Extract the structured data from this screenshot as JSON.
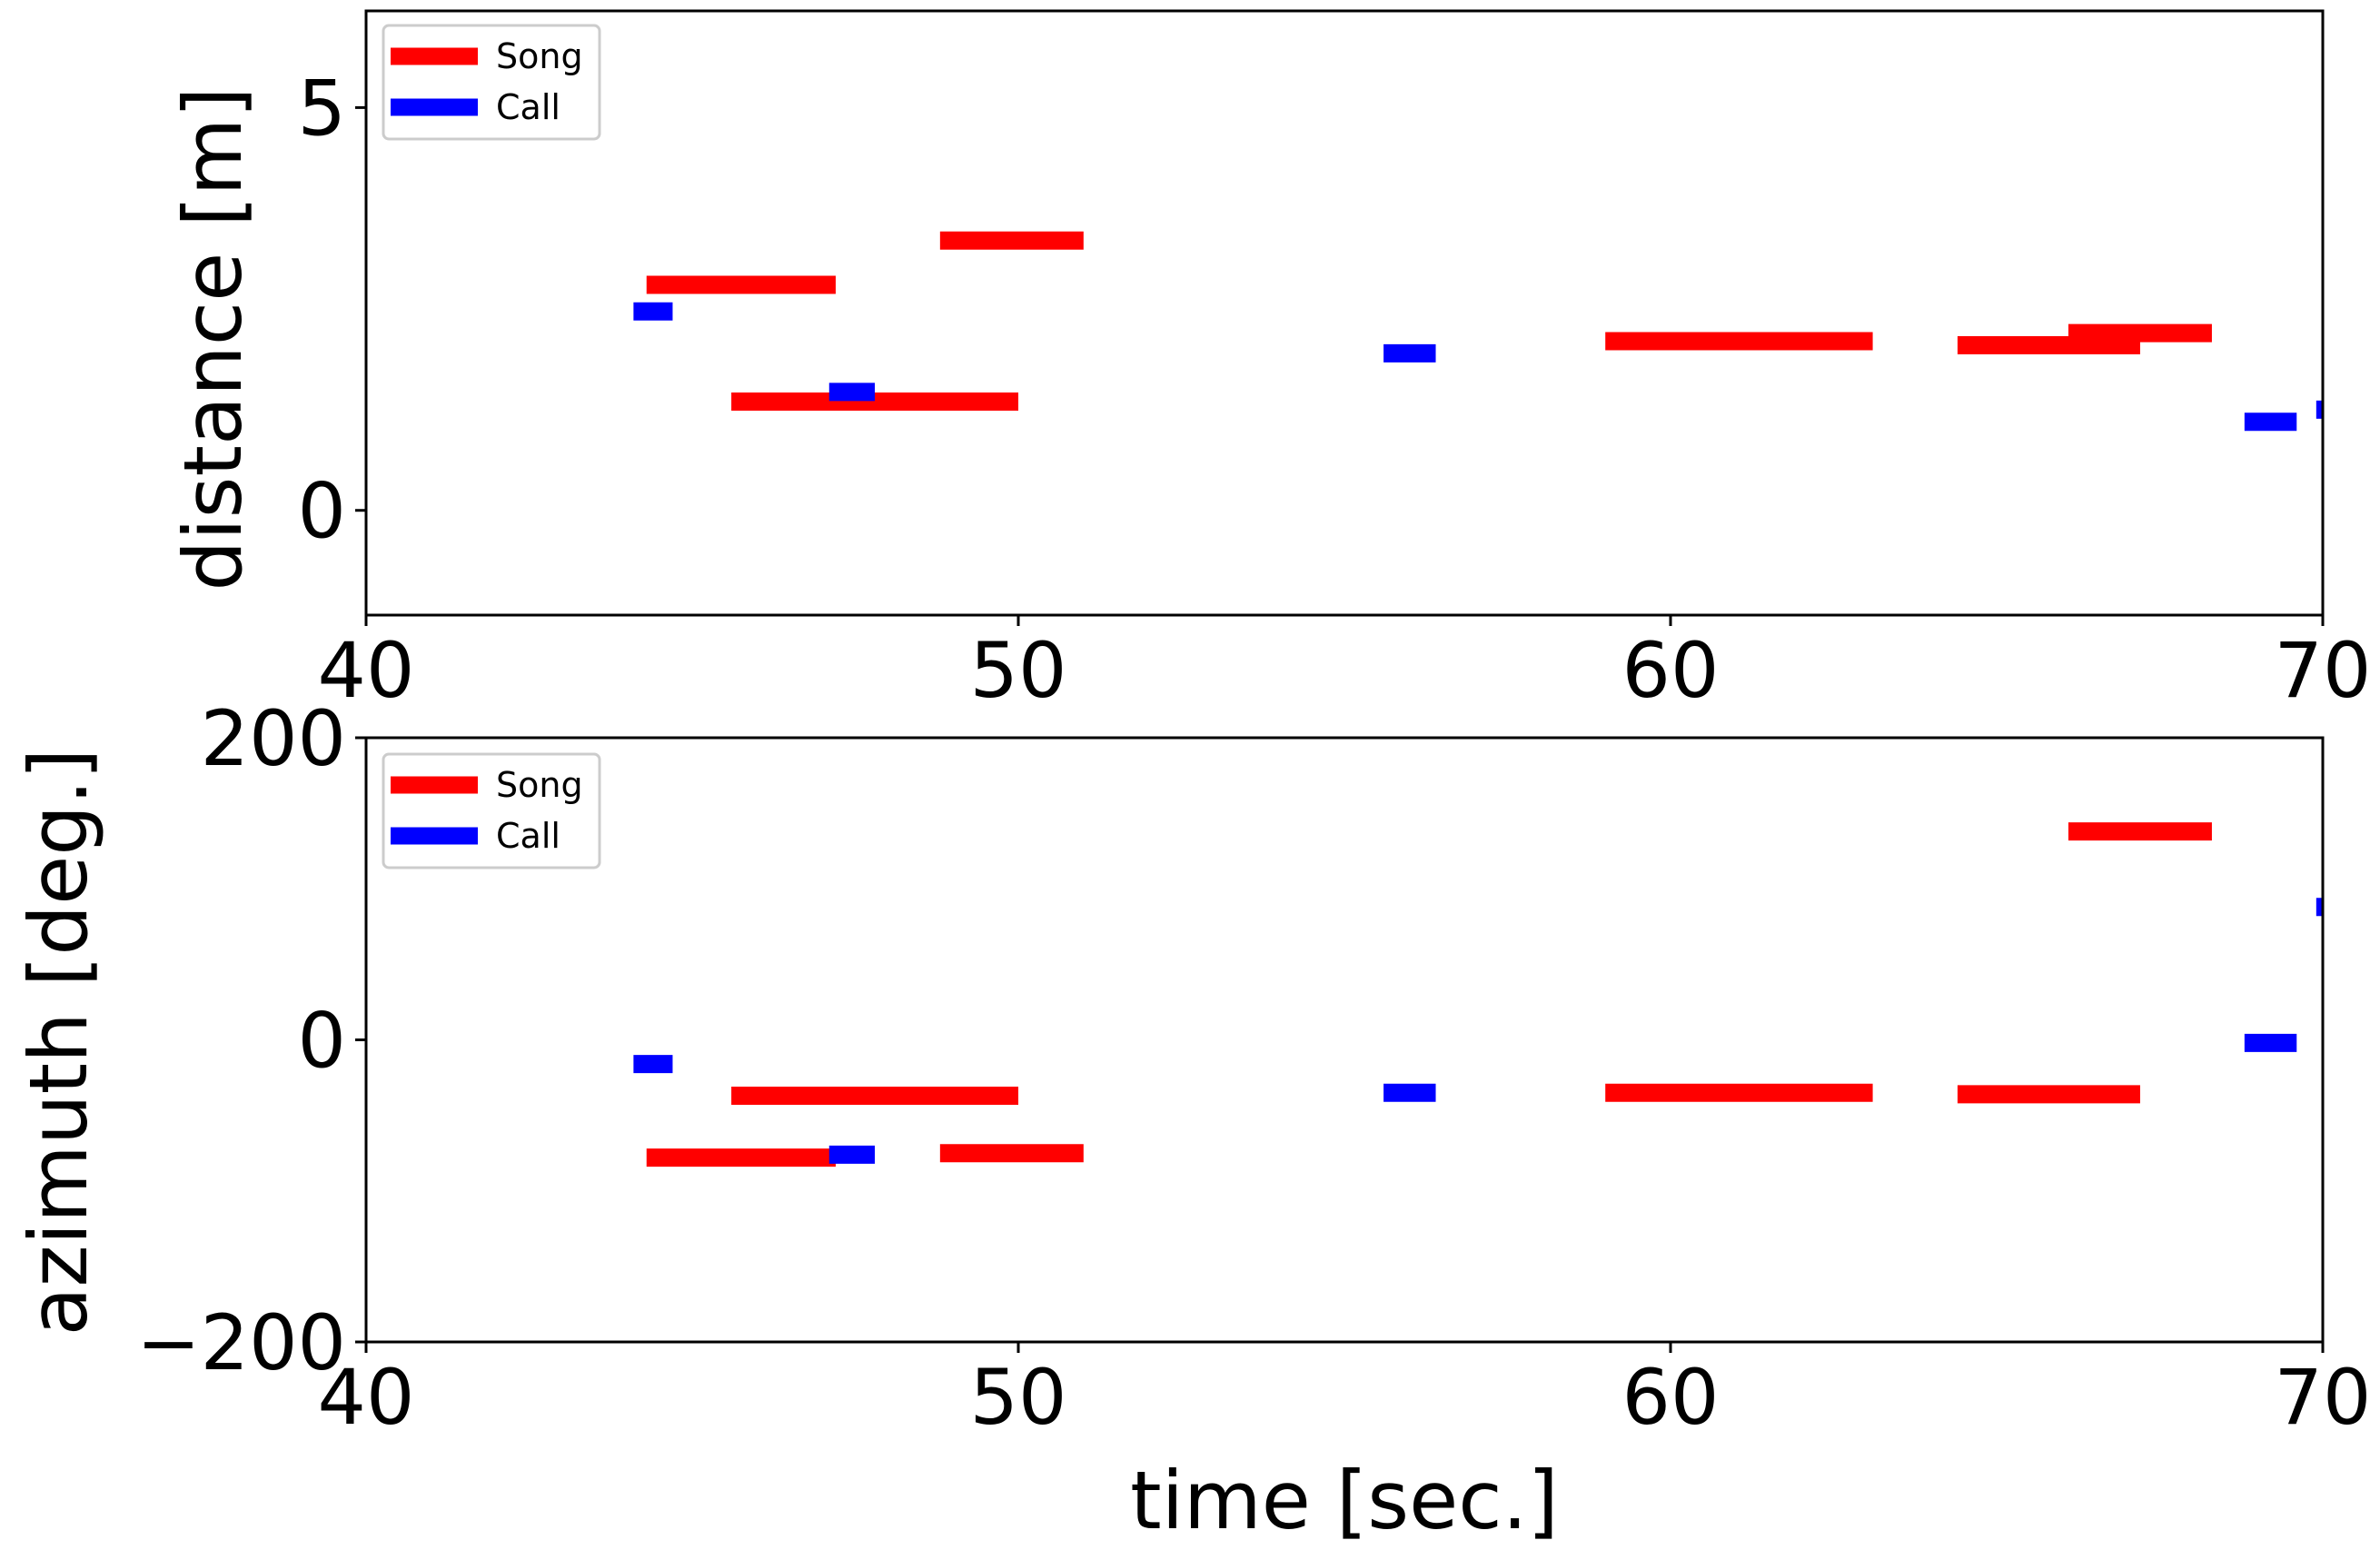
{
  "chart_data": [
    {
      "type": "segments",
      "ylabel": "distance [m]",
      "xlabel": "",
      "xlim": [
        40,
        70
      ],
      "ylim": [
        -1.3,
        6.2
      ],
      "xticks": [
        "40",
        "50",
        "60",
        "70"
      ],
      "yticks": [
        "0",
        "5"
      ],
      "legend": {
        "position": "top-left",
        "entries": [
          {
            "name": "Song",
            "color": "#ff0000"
          },
          {
            "name": "Call",
            "color": "#0000ff"
          }
        ]
      },
      "series": [
        {
          "name": "Song",
          "color": "#ff0000",
          "segments": [
            {
              "x0": 44.3,
              "x1": 47.2,
              "y": 2.8
            },
            {
              "x0": 45.6,
              "x1": 50.0,
              "y": 1.35
            },
            {
              "x0": 48.8,
              "x1": 51.0,
              "y": 3.35
            },
            {
              "x0": 59.0,
              "x1": 63.1,
              "y": 2.1
            },
            {
              "x0": 64.4,
              "x1": 67.2,
              "y": 2.05
            },
            {
              "x0": 66.1,
              "x1": 68.3,
              "y": 2.2
            }
          ]
        },
        {
          "name": "Call",
          "color": "#0000ff",
          "segments": [
            {
              "x0": 44.1,
              "x1": 44.7,
              "y": 2.47
            },
            {
              "x0": 47.1,
              "x1": 47.8,
              "y": 1.47
            },
            {
              "x0": 55.6,
              "x1": 56.4,
              "y": 1.95
            },
            {
              "x0": 68.8,
              "x1": 69.6,
              "y": 1.1
            },
            {
              "x0": 69.9,
              "x1": 70.4,
              "y": 1.25
            }
          ]
        }
      ]
    },
    {
      "type": "segments",
      "ylabel": "azimuth [deg.]",
      "xlabel": "time [sec.]",
      "xlim": [
        40,
        70
      ],
      "ylim": [
        -200,
        200
      ],
      "xticks": [
        "40",
        "50",
        "60",
        "70"
      ],
      "yticks": [
        "−200",
        "0",
        "200"
      ],
      "legend": {
        "position": "top-left",
        "entries": [
          {
            "name": "Song",
            "color": "#ff0000"
          },
          {
            "name": "Call",
            "color": "#0000ff"
          }
        ]
      },
      "series": [
        {
          "name": "Song",
          "color": "#ff0000",
          "segments": [
            {
              "x0": 44.3,
              "x1": 47.2,
              "y": -78
            },
            {
              "x0": 45.6,
              "x1": 50.0,
              "y": -37
            },
            {
              "x0": 48.8,
              "x1": 51.0,
              "y": -75
            },
            {
              "x0": 59.0,
              "x1": 63.1,
              "y": -35
            },
            {
              "x0": 64.4,
              "x1": 67.2,
              "y": -36
            },
            {
              "x0": 66.1,
              "x1": 68.3,
              "y": 138
            }
          ]
        },
        {
          "name": "Call",
          "color": "#0000ff",
          "segments": [
            {
              "x0": 44.1,
              "x1": 44.7,
              "y": -16
            },
            {
              "x0": 47.1,
              "x1": 47.8,
              "y": -76
            },
            {
              "x0": 55.6,
              "x1": 56.4,
              "y": -35
            },
            {
              "x0": 68.8,
              "x1": 69.6,
              "y": -2
            },
            {
              "x0": 69.9,
              "x1": 70.4,
              "y": 88
            }
          ]
        }
      ]
    }
  ]
}
